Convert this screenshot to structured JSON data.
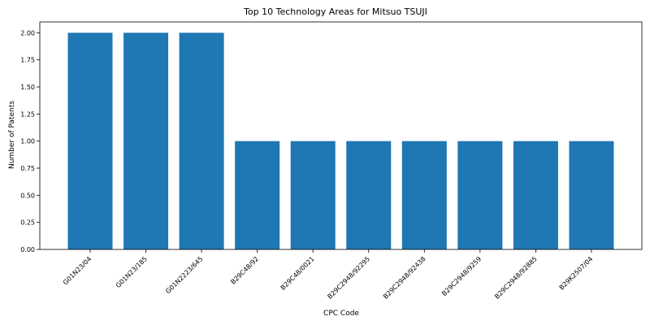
{
  "chart_data": {
    "type": "bar",
    "title": "Top 10 Technology Areas for Mitsuo TSUJI",
    "xlabel": "CPC Code",
    "ylabel": "Number of Patents",
    "categories": [
      "G01N23/04",
      "G01N23/185",
      "G01N2223/645",
      "B29C48/92",
      "B29C48/0021",
      "B29C2948/92295",
      "B29C2948/92438",
      "B29C2948/9259",
      "B29C2948/92885",
      "B29K2507/04"
    ],
    "values": [
      2,
      2,
      2,
      1,
      1,
      1,
      1,
      1,
      1,
      1
    ],
    "ylim": [
      0,
      2.1
    ],
    "yticks": [
      "0.00",
      "0.25",
      "0.50",
      "0.75",
      "1.00",
      "1.25",
      "1.50",
      "1.75",
      "2.00"
    ],
    "bar_color": "#1f77b4",
    "grid": false
  }
}
